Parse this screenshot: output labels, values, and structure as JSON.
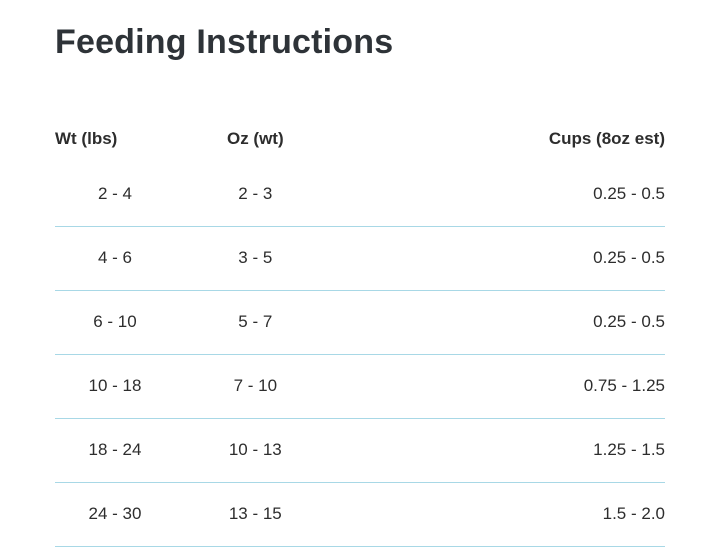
{
  "page": {
    "title": "Feeding Instructions"
  },
  "colors": {
    "divider": "#a8d8e6",
    "text": "#2d2d2d",
    "title": "#2e3338",
    "background": "#ffffff"
  },
  "table": {
    "headers": [
      "Wt (lbs)",
      "Oz (wt)",
      "Cups (8oz est)"
    ],
    "rows": [
      {
        "wt": "2 - 4",
        "oz": "2 - 3",
        "cups": "0.25 - 0.5"
      },
      {
        "wt": "4 - 6",
        "oz": "3 - 5",
        "cups": "0.25 - 0.5"
      },
      {
        "wt": "6 - 10",
        "oz": "5 - 7",
        "cups": "0.25 - 0.5"
      },
      {
        "wt": "10 - 18",
        "oz": "7 - 10",
        "cups": "0.75 - 1.25"
      },
      {
        "wt": "18 - 24",
        "oz": "10 - 13",
        "cups": "1.25 - 1.5"
      },
      {
        "wt": "24 - 30",
        "oz": "13 - 15",
        "cups": "1.5 - 2.0"
      }
    ]
  }
}
